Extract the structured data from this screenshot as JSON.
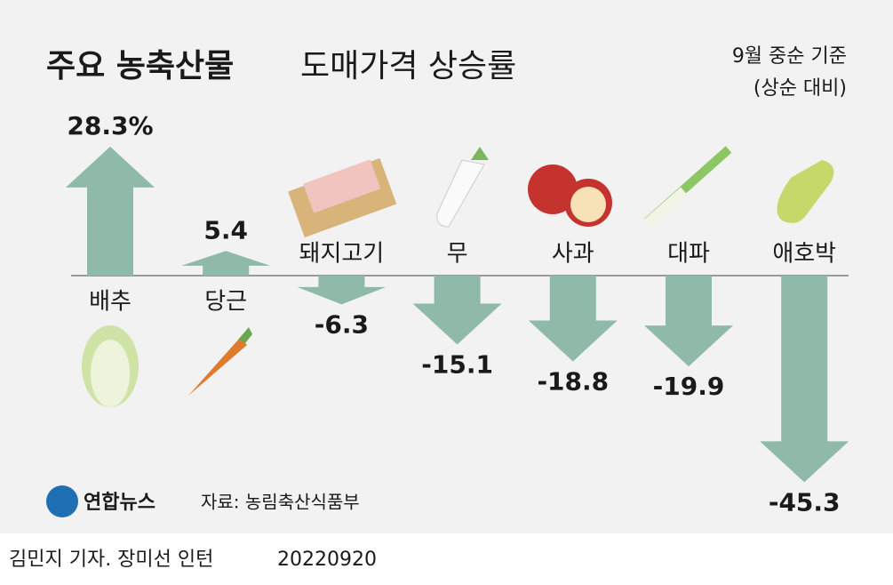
{
  "chart_data": {
    "type": "bar",
    "title": "주요 농축산물",
    "subtitle": "도매가격 상승률",
    "note": [
      "9월 중순 기준",
      "(상순 대비)"
    ],
    "categories": [
      "배추",
      "당근",
      "돼지고기",
      "무",
      "사과",
      "대파",
      "애호박"
    ],
    "values": [
      28.3,
      5.4,
      -6.3,
      -15.1,
      -18.8,
      -19.9,
      -45.3
    ],
    "value_labels": [
      "28.3%",
      "5.4",
      "-6.3",
      "-15.1",
      "-18.8",
      "-19.9",
      "-45.3"
    ],
    "color": "#8fb9a8",
    "source": "자료: 농림축산식품부",
    "logo": "연합뉴스",
    "credit": "김민지 기자. 장미선 인턴",
    "date": "20220920"
  }
}
